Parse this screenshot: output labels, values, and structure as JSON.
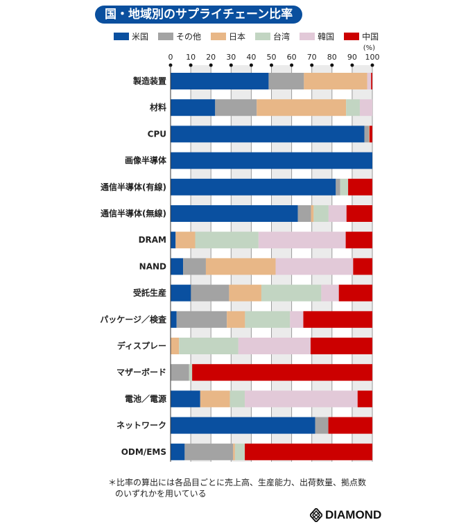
{
  "chart_data": {
    "type": "bar",
    "orientation": "horizontal",
    "stacked": true,
    "title": "国・地域別のサプライチェーン比率",
    "unit_label": "(%)",
    "xlim": [
      0,
      100
    ],
    "xticks": [
      "0",
      "10",
      "20",
      "30",
      "40",
      "50",
      "60",
      "70",
      "80",
      "90",
      "100"
    ],
    "categories": [
      "製造装置",
      "材料",
      "CPU",
      "画像半導体",
      "通信半導体(有線)",
      "通信半導体(無線)",
      "DRAM",
      "NAND",
      "受託生産",
      "パッケージ／検査",
      "ディスプレー",
      "マザーボード",
      "電池／電源",
      "ネットワーク",
      "ODM/EMS"
    ],
    "series": [
      {
        "name": "米国",
        "color": "#0a50a0",
        "values": [
          48.6,
          22.1,
          96.1,
          100,
          81.9,
          63.1,
          2.5,
          6.2,
          10.1,
          3.0,
          0,
          0,
          14.7,
          71.7,
          7.0
        ]
      },
      {
        "name": "その他",
        "color": "#a3a3a3",
        "values": [
          17.5,
          20.6,
          2.2,
          0,
          2.2,
          6.5,
          0,
          11.3,
          18.9,
          24.9,
          0,
          9.2,
          0,
          6.5,
          24.0
        ]
      },
      {
        "name": "日本",
        "color": "#e8b787",
        "values": [
          31.4,
          44.3,
          0.3,
          0,
          0,
          1.3,
          9.7,
          34.6,
          16.0,
          9.0,
          4.2,
          0,
          14.7,
          0,
          0.9
        ]
      },
      {
        "name": "台湾",
        "color": "#c2d5c2",
        "values": [
          0,
          6.8,
          0,
          0,
          3.9,
          7.4,
          31.4,
          0,
          29.7,
          22.3,
          29.4,
          1.5,
          7.4,
          0,
          4.9
        ]
      },
      {
        "name": "韓国",
        "color": "#e2c9d8",
        "values": [
          1.9,
          6.2,
          0,
          0,
          0,
          8.9,
          43.2,
          38.4,
          8.7,
          6.6,
          35.8,
          0,
          55.9,
          0,
          0
        ]
      },
      {
        "name": "中国",
        "color": "#cc0000",
        "values": [
          0.6,
          0,
          1.4,
          0,
          12.0,
          12.8,
          13.2,
          9.5,
          16.6,
          34.2,
          30.6,
          89.3,
          7.3,
          21.8,
          63.2
        ]
      }
    ],
    "grid": true,
    "legend_position": "top"
  },
  "footnote": {
    "line1": "＊比率の算出には各品目ごとに売上高、生産能力、出荷数量、拠点数",
    "line2": "のいずれかを用いている"
  },
  "logo_text": "DIAMOND"
}
